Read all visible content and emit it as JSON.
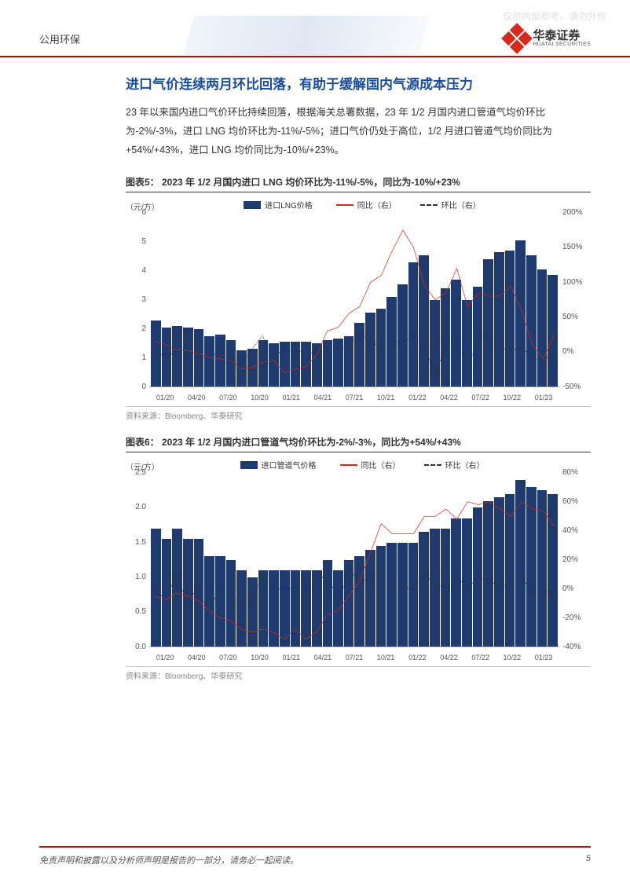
{
  "watermark": "仅供内部参考，请勿外传",
  "header": {
    "category": "公用环保",
    "company_cn": "华泰证券",
    "company_en": "HUATAI SECURITIES"
  },
  "section_title": "进口气价连续两月环比回落，有助于缓解国内气源成本压力",
  "body_text": "23 年以来国内进口气价环比持续回落，根据海关总署数据，23 年 1/2 月国内进口管道气均价环比为-2%/-3%，进口 LNG 均价环比为-11%/-5%；进口气价仍处于高位，1/2 月进口管道气均价同比为+54%/+43%，进口 LNG 均价同比为-10%/+23%。",
  "charts": [
    {
      "title": "图表5： 2023 年 1/2 月国内进口 LNG 均价环比为-11%/-5%，同比为-10%/+23%",
      "source": "资料来源：Bloomberg、华泰研究",
      "y_left_label": "（元/方）",
      "y_left_ticks": [
        0,
        1,
        2,
        3,
        4,
        5,
        6
      ],
      "y_left_max": 6,
      "y_right_ticks": [
        "-50%",
        "0%",
        "50%",
        "100%",
        "150%",
        "200%"
      ],
      "y_right_min": -50,
      "y_right_max": 200,
      "x_ticks": [
        "01/20",
        "04/20",
        "07/20",
        "10/20",
        "01/21",
        "04/21",
        "07/21",
        "10/21",
        "01/22",
        "04/22",
        "07/22",
        "10/22",
        "01/23"
      ],
      "bar_color": "#1f3a6e",
      "bar_values": [
        2.3,
        2.05,
        2.1,
        2.05,
        2.0,
        1.75,
        1.8,
        1.6,
        1.25,
        1.3,
        1.6,
        1.5,
        1.55,
        1.55,
        1.55,
        1.5,
        1.6,
        1.65,
        1.75,
        2.2,
        2.55,
        2.7,
        3.1,
        3.55,
        4.3,
        4.55,
        3.0,
        3.4,
        3.7,
        3.0,
        3.45,
        4.4,
        4.65,
        4.7,
        5.05,
        4.55,
        4.05,
        3.85
      ],
      "yoy_color": "#d9291c",
      "yoy_values": [
        15,
        10,
        3,
        2,
        -2,
        -8,
        -10,
        -12,
        -25,
        -23,
        -15,
        -12,
        -30,
        -25,
        -22,
        -5,
        30,
        35,
        55,
        65,
        100,
        110,
        145,
        175,
        150,
        95,
        75,
        85,
        120,
        65,
        85,
        80,
        80,
        95,
        60,
        10,
        -10,
        23
      ],
      "mom_color": "#333333",
      "mom_values": [
        5,
        -10,
        2,
        -2,
        -2,
        -12,
        3,
        -11,
        -22,
        4,
        23,
        -6,
        3,
        0,
        0,
        -3,
        7,
        3,
        6,
        26,
        16,
        6,
        15,
        15,
        21,
        6,
        -34,
        13,
        9,
        -19,
        15,
        28,
        6,
        1,
        7,
        -10,
        -11,
        -5
      ]
    },
    {
      "title": "图表6： 2023 年 1/2 月国内进口管道气均价环比为-2%/-3%，同比为+54%/+43%",
      "source": "资料来源：Bloomberg、华泰研究",
      "y_left_label": "（元/方）",
      "y_left_ticks": [
        0.0,
        0.5,
        1.0,
        1.5,
        2.0,
        2.5
      ],
      "y_left_max": 2.5,
      "y_right_ticks": [
        "-40%",
        "-20%",
        "0%",
        "20%",
        "40%",
        "60%",
        "80%"
      ],
      "y_right_min": -40,
      "y_right_max": 80,
      "x_ticks": [
        "01/20",
        "04/20",
        "07/20",
        "10/20",
        "01/21",
        "04/21",
        "07/21",
        "10/21",
        "01/22",
        "04/22",
        "07/22",
        "10/22",
        "01/23"
      ],
      "bar_color": "#1f3a6e",
      "bar_values": [
        1.7,
        1.55,
        1.7,
        1.55,
        1.55,
        1.3,
        1.3,
        1.25,
        1.1,
        1.0,
        1.1,
        1.1,
        1.1,
        1.1,
        1.1,
        1.1,
        1.25,
        1.1,
        1.25,
        1.3,
        1.4,
        1.45,
        1.5,
        1.5,
        1.5,
        1.65,
        1.7,
        1.7,
        1.85,
        1.85,
        2.0,
        2.1,
        2.15,
        2.2,
        2.4,
        2.3,
        2.25,
        2.2
      ],
      "yoy_color": "#d9291c",
      "yoy_values": [
        -5,
        -8,
        -3,
        -5,
        -8,
        -15,
        -20,
        -22,
        -28,
        -30,
        -28,
        -30,
        -35,
        -28,
        -35,
        -30,
        -18,
        -15,
        -5,
        5,
        25,
        45,
        38,
        38,
        38,
        50,
        50,
        55,
        48,
        60,
        58,
        60,
        55,
        50,
        60,
        55,
        54,
        43
      ],
      "mom_color": "#333333",
      "mom_values": [
        2,
        -9,
        10,
        -9,
        0,
        -16,
        0,
        -4,
        -12,
        -9,
        10,
        0,
        0,
        0,
        0,
        0,
        14,
        -12,
        14,
        4,
        8,
        4,
        3,
        0,
        0,
        10,
        3,
        0,
        9,
        0,
        8,
        5,
        2,
        2,
        9,
        -4,
        -2,
        -3
      ]
    }
  ],
  "legend": {
    "bar": "",
    "yoy": "同比（右）",
    "mom": "环比（右）"
  },
  "legend_bar_labels": [
    "进口LNG价格",
    "进口管道气价格"
  ],
  "footer": {
    "disclaimer": "免责声明和披露以及分析师声明是报告的一部分，请务必一起阅读。",
    "page": "5"
  }
}
